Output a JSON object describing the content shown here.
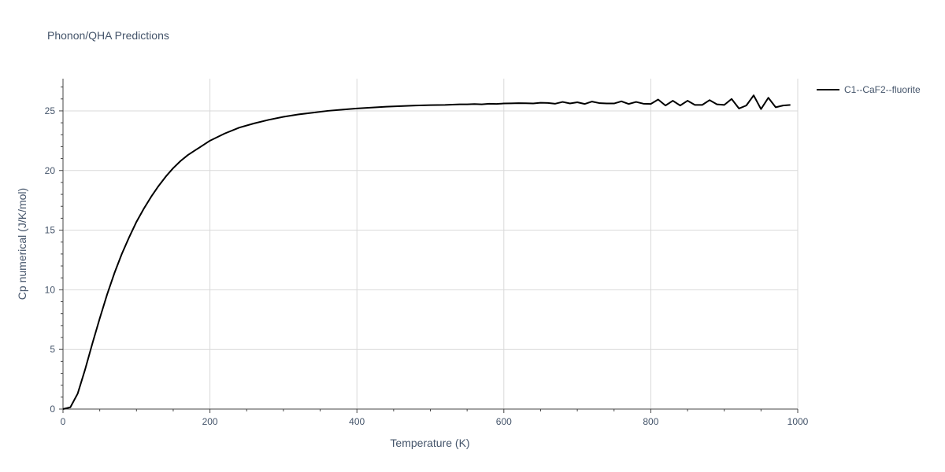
{
  "chart_data": {
    "type": "line",
    "title": "Phonon/QHA Predictions",
    "xlabel": "Temperature (K)",
    "ylabel": "Cp numerical (J/K/mol)",
    "xlim": [
      0,
      1000
    ],
    "ylim": [
      0,
      27.7
    ],
    "x_ticks": [
      0,
      200,
      400,
      600,
      800,
      1000
    ],
    "y_ticks": [
      0,
      5,
      10,
      15,
      20,
      25
    ],
    "grid": true,
    "legend_position": "top-right",
    "line_color": "#000000",
    "series": [
      {
        "name": "C1--CaF2--fluorite",
        "x": [
          0,
          10,
          20,
          30,
          40,
          50,
          60,
          70,
          80,
          90,
          100,
          110,
          120,
          130,
          140,
          150,
          160,
          170,
          180,
          190,
          200,
          220,
          240,
          260,
          280,
          300,
          320,
          340,
          360,
          380,
          400,
          420,
          440,
          460,
          480,
          500,
          520,
          540,
          550,
          560,
          570,
          580,
          590,
          600,
          610,
          620,
          630,
          640,
          650,
          660,
          670,
          680,
          690,
          700,
          710,
          720,
          730,
          740,
          750,
          760,
          770,
          780,
          790,
          800,
          810,
          820,
          830,
          840,
          850,
          860,
          870,
          880,
          890,
          900,
          910,
          920,
          930,
          940,
          950,
          960,
          970,
          980,
          990
        ],
        "values": [
          0,
          0.15,
          1.3,
          3.3,
          5.5,
          7.6,
          9.6,
          11.4,
          13.0,
          14.4,
          15.7,
          16.8,
          17.8,
          18.7,
          19.5,
          20.2,
          20.8,
          21.3,
          21.7,
          22.1,
          22.5,
          23.1,
          23.6,
          23.95,
          24.25,
          24.5,
          24.7,
          24.85,
          25.0,
          25.1,
          25.2,
          25.28,
          25.35,
          25.4,
          25.45,
          25.48,
          25.5,
          25.55,
          25.55,
          25.57,
          25.55,
          25.6,
          25.58,
          25.62,
          25.63,
          25.65,
          25.64,
          25.62,
          25.68,
          25.66,
          25.6,
          25.75,
          25.62,
          25.72,
          25.58,
          25.78,
          25.65,
          25.62,
          25.62,
          25.8,
          25.58,
          25.75,
          25.6,
          25.58,
          25.95,
          25.45,
          25.85,
          25.45,
          25.85,
          25.5,
          25.5,
          25.9,
          25.55,
          25.5,
          26.0,
          25.2,
          25.45,
          26.3,
          25.15,
          26.1,
          25.3,
          25.45,
          25.5
        ]
      }
    ]
  }
}
